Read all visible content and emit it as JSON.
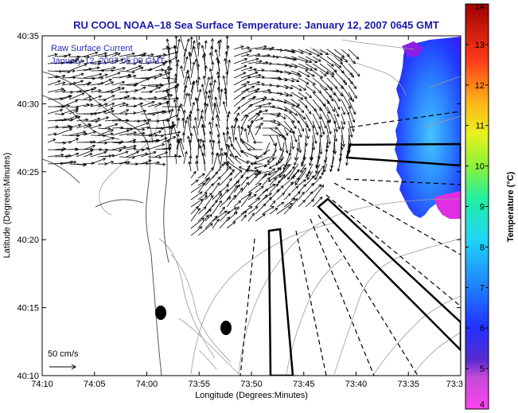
{
  "title": "RU COOL  NOAA–18  Sea Surface Temperature:  January 12, 2007 0645 GMT",
  "legend": {
    "line1": "Raw Surface Current",
    "line2": "January 12, 2007 05:00 GMT",
    "scale_label": "50 cm/s"
  },
  "axes": {
    "xlabel": "Longitude (Degrees:Minutes)",
    "ylabel": "Latitude (Degrees:Minutes)",
    "x_ticks": [
      "74:10",
      "74:05",
      "74:00",
      "73:55",
      "73:50",
      "73:45",
      "73:40",
      "73:35",
      "73:3"
    ],
    "y_ticks": [
      "40:35",
      "40:30",
      "40:25",
      "40:20",
      "40:15",
      "40:10"
    ]
  },
  "colorbar": {
    "label": "Temperature (°C)",
    "ticks": [
      "14",
      "13",
      "12",
      "11",
      "10",
      "9",
      "8",
      "7",
      "6",
      "5",
      "4"
    ],
    "min": 4,
    "max": 14
  },
  "colors": {
    "title": "#1a1aa8",
    "legend_text": "#2a2ab5",
    "coast": "#555555",
    "bathymetry": "#9a9a9a",
    "arrows": "#000000"
  },
  "map_elements": {
    "markers": [
      "station-marker",
      "station-marker"
    ],
    "channels": [
      "shipping-channel-east",
      "shipping-channel-southeast",
      "shipping-channel-south"
    ]
  }
}
